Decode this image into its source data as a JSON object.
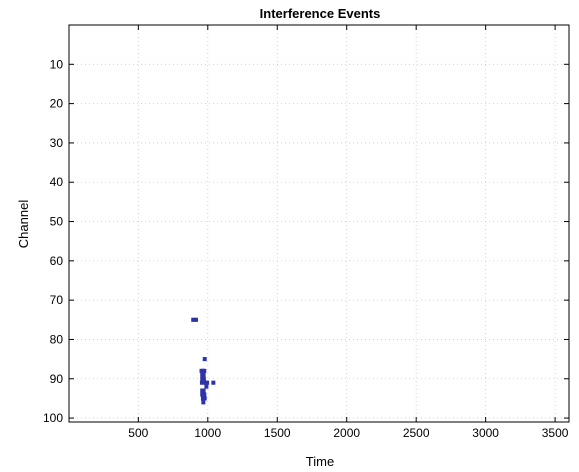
{
  "chart_data": {
    "type": "heatmap",
    "title": "Interference Events",
    "xlabel": "Time",
    "ylabel": "Channel",
    "xlim": [
      1,
      3600
    ],
    "ylim": [
      0,
      101
    ],
    "y_reversed": true,
    "x_ticks": [
      500,
      1000,
      1500,
      2000,
      2500,
      3000,
      3500
    ],
    "y_ticks": [
      10,
      20,
      30,
      40,
      50,
      60,
      70,
      80,
      90,
      100
    ],
    "grid": true,
    "event_color": "#2f33a8",
    "events": [
      {
        "t": 895,
        "ch": 75
      },
      {
        "t": 915,
        "ch": 75
      },
      {
        "t": 978,
        "ch": 85
      },
      {
        "t": 955,
        "ch": 88
      },
      {
        "t": 965,
        "ch": 88
      },
      {
        "t": 975,
        "ch": 88
      },
      {
        "t": 960,
        "ch": 89
      },
      {
        "t": 970,
        "ch": 89
      },
      {
        "t": 960,
        "ch": 90
      },
      {
        "t": 972,
        "ch": 90
      },
      {
        "t": 958,
        "ch": 91
      },
      {
        "t": 985,
        "ch": 91
      },
      {
        "t": 995,
        "ch": 91
      },
      {
        "t": 1040,
        "ch": 91
      },
      {
        "t": 990,
        "ch": 92
      },
      {
        "t": 960,
        "ch": 93
      },
      {
        "t": 970,
        "ch": 93
      },
      {
        "t": 960,
        "ch": 94
      },
      {
        "t": 975,
        "ch": 94
      },
      {
        "t": 965,
        "ch": 95
      },
      {
        "t": 978,
        "ch": 95
      },
      {
        "t": 968,
        "ch": 96
      }
    ]
  }
}
